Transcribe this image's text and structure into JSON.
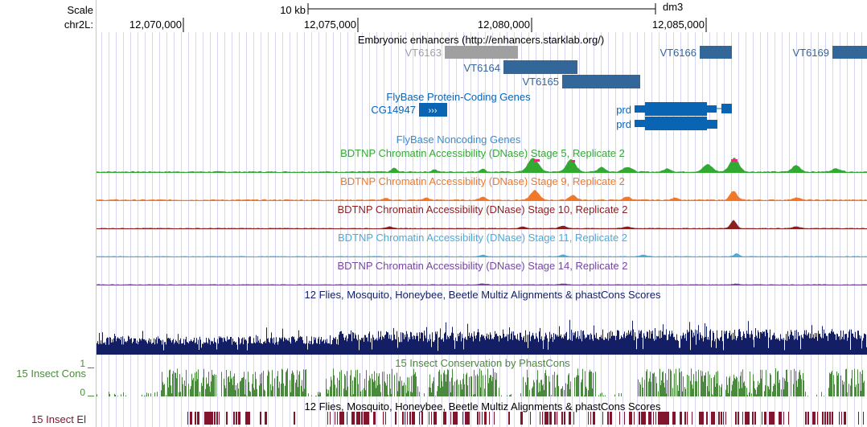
{
  "scale": {
    "label": "Scale",
    "bar_text": "10 kb",
    "assembly": "dm3"
  },
  "ruler": {
    "chrom_label": "chr2L:",
    "ticks": [
      "12,070,000",
      "12,075,000",
      "12,080,000",
      "12,085,000"
    ]
  },
  "tracks": {
    "enhancers": {
      "title": "Embryonic enhancers (http://enhancers.starklab.org/)",
      "color": "#336699",
      "grey_color": "#a0a0a0",
      "items": [
        {
          "name": "VT6163",
          "grey": true
        },
        {
          "name": "VT6164",
          "grey": false
        },
        {
          "name": "VT6165",
          "grey": false
        },
        {
          "name": "VT6166",
          "grey": false
        },
        {
          "name": "VT6169",
          "grey": false
        }
      ]
    },
    "protein_coding": {
      "title": "FlyBase Protein-Coding Genes",
      "color": "#0a64b4",
      "genes": [
        "CG14947",
        "prd",
        "prd"
      ]
    },
    "noncoding": {
      "title": "FlyBase Noncoding Genes",
      "color": "#3c8cc8"
    },
    "dnase": [
      {
        "title": "BDTNP Chromatin Accessibility (DNase) Stage 5, Replicate 2",
        "color": "#32aa32"
      },
      {
        "title": "BDTNP Chromatin Accessibility (DNase) Stage 9, Replicate 2",
        "color": "#f07828"
      },
      {
        "title": "BDTNP Chromatin Accessibility (DNase) Stage 10, Replicate 2",
        "color": "#8c1e1e"
      },
      {
        "title": "BDTNP Chromatin Accessibility (DNase) Stage 11, Replicate 2",
        "color": "#50aad2"
      },
      {
        "title": "BDTNP Chromatin Accessibility (DNase) Stage 14, Replicate 2",
        "color": "#7846a0"
      }
    ],
    "multiz": {
      "title": "12 Flies, Mosquito, Honeybee, Beetle Multiz Alignments & phastCons Scores",
      "color": "#141e64"
    },
    "phastcons": {
      "title": "15 Insect Conservation by PhastCons",
      "side_label": "15 Insect Cons",
      "axis_max": "1",
      "axis_min": "0",
      "color": "#4a8a3c"
    },
    "elements": {
      "title": "12 Flies, Mosquito, Honeybee, Beetle Multiz Alignments & phastCons Scores",
      "side_label": "15 Insect El",
      "color": "#82142d"
    }
  }
}
